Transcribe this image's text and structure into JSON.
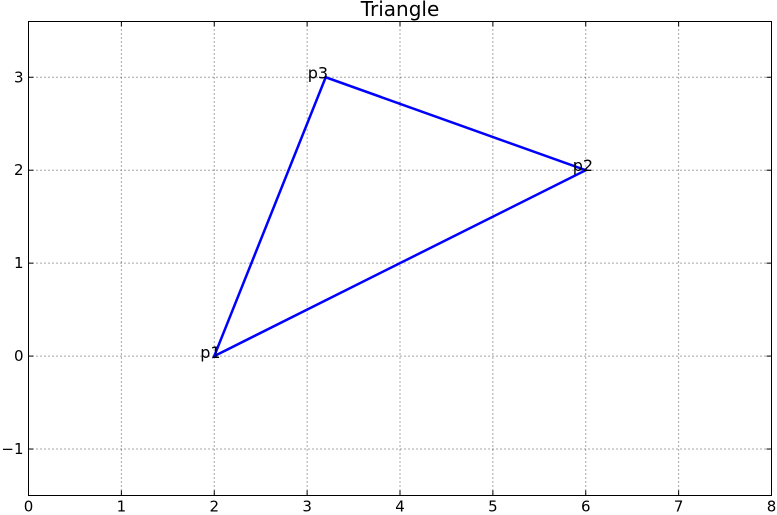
{
  "chart_data": {
    "type": "line",
    "title": "Triangle",
    "background": "#ffffff",
    "spine_color": "#000000",
    "grid": {
      "style": "dotted",
      "color": "#4d4d4d"
    },
    "xlim": [
      0,
      8
    ],
    "ylim": [
      -1.5,
      3.6
    ],
    "xticks": [
      {
        "value": 0,
        "label": "0"
      },
      {
        "value": 1,
        "label": "1"
      },
      {
        "value": 2,
        "label": "2"
      },
      {
        "value": 3,
        "label": "3"
      },
      {
        "value": 4,
        "label": "4"
      },
      {
        "value": 5,
        "label": "5"
      },
      {
        "value": 6,
        "label": "6"
      },
      {
        "value": 7,
        "label": "7"
      },
      {
        "value": 8,
        "label": "8"
      }
    ],
    "yticks": [
      {
        "value": -1,
        "label": "−1"
      },
      {
        "value": 0,
        "label": "0"
      },
      {
        "value": 1,
        "label": "1"
      },
      {
        "value": 2,
        "label": "2"
      },
      {
        "value": 3,
        "label": "3"
      }
    ],
    "series": [
      {
        "name": "triangle",
        "closed": true,
        "color": "#0000ff",
        "line_width": 2.5,
        "points": [
          {
            "label": "p1",
            "x": 2,
            "y": 0,
            "label_dx": -14,
            "label_dy": 2
          },
          {
            "label": "p2",
            "x": 6,
            "y": 2,
            "label_dx": -13,
            "label_dy": 1
          },
          {
            "label": "p3",
            "x": 3.2,
            "y": 3,
            "label_dx": -18,
            "label_dy": 1
          }
        ]
      }
    ]
  }
}
